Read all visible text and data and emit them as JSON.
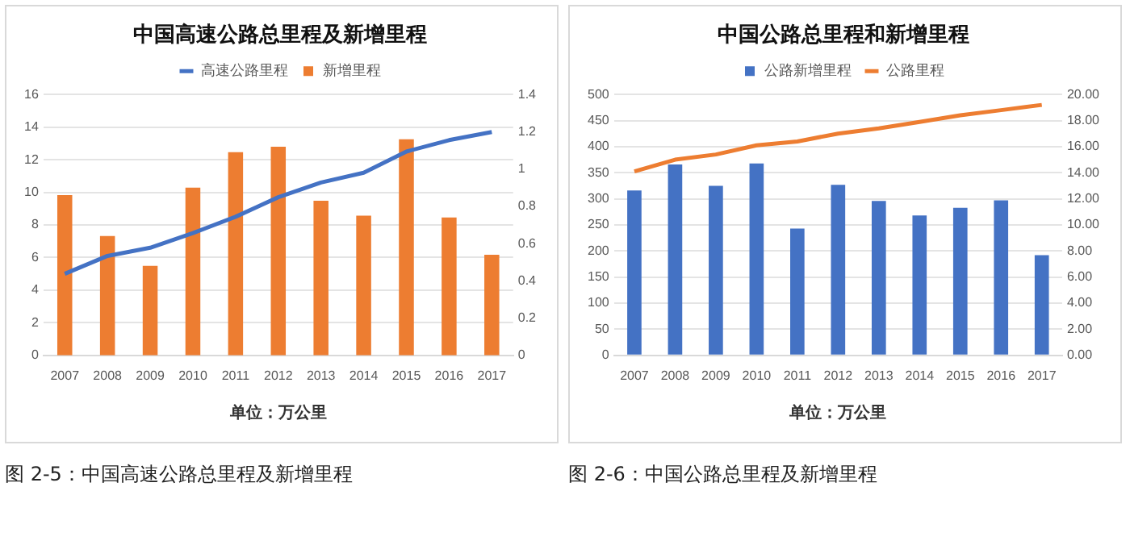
{
  "chart_data": [
    {
      "type": "bar",
      "title": "中国高速公路总里程及新增里程",
      "xlabel": "单位：万公里",
      "categories": [
        "2007",
        "2008",
        "2009",
        "2010",
        "2011",
        "2012",
        "2013",
        "2014",
        "2015",
        "2016",
        "2017"
      ],
      "series": [
        {
          "name": "高速公路里程",
          "type": "line",
          "axis": "y",
          "color": "#4472c4",
          "values": [
            5.0,
            6.1,
            6.6,
            7.5,
            8.5,
            9.7,
            10.6,
            11.2,
            12.5,
            13.2,
            13.7
          ]
        },
        {
          "name": "新增里程",
          "axis": "y2",
          "color": "#ed7d31",
          "values": [
            0.86,
            0.64,
            0.48,
            0.9,
            1.09,
            1.12,
            0.83,
            0.75,
            1.16,
            0.74,
            0.54
          ]
        }
      ],
      "ylim": [
        0,
        16
      ],
      "yticks": [
        0,
        2,
        4,
        6,
        8,
        10,
        12,
        14,
        16
      ],
      "y2lim": [
        0,
        1.4
      ],
      "y2ticks": [
        0,
        0.2,
        0.4,
        0.6,
        0.8,
        1,
        1.2,
        1.4
      ],
      "grid": "y",
      "legend": "top",
      "marker": "none",
      "annotations": [
        "图 2-5：中国高速公路总里程及新增里程"
      ]
    },
    {
      "type": "bar",
      "title": "中国公路总里程和新增里程",
      "xlabel": "单位：万公里",
      "categories": [
        "2007",
        "2008",
        "2009",
        "2010",
        "2011",
        "2012",
        "2013",
        "2014",
        "2015",
        "2016",
        "2017"
      ],
      "series": [
        {
          "name": "公路新增里程",
          "axis": "y",
          "color": "#4472c4",
          "values": [
            316,
            366,
            325,
            368,
            243,
            327,
            296,
            268,
            283,
            297,
            192
          ]
        },
        {
          "name": "公路里程",
          "type": "line",
          "axis": "y2",
          "color": "#ed7d31",
          "values": [
            14.1,
            15.0,
            15.4,
            16.1,
            16.4,
            17.0,
            17.4,
            17.9,
            18.4,
            18.8,
            19.2
          ]
        }
      ],
      "ylim": [
        0,
        500
      ],
      "yticks": [
        0,
        50,
        100,
        150,
        200,
        250,
        300,
        350,
        400,
        450,
        500
      ],
      "y2lim": [
        0,
        20
      ],
      "y2ticks": [
        {
          "value": 0,
          "label": "0.00"
        },
        {
          "value": 2,
          "label": "2.00"
        },
        {
          "value": 4,
          "label": "4.00"
        },
        {
          "value": 6,
          "label": "6.00"
        },
        {
          "value": 8,
          "label": "8.00"
        },
        {
          "value": 10,
          "label": "10.00"
        },
        {
          "value": 12,
          "label": "12.00"
        },
        {
          "value": 14,
          "label": "14.00"
        },
        {
          "value": 16,
          "label": "16.00"
        },
        {
          "value": 18,
          "label": "18.00"
        },
        {
          "value": 20,
          "label": "20.00"
        }
      ],
      "grid": "y",
      "legend": "top",
      "marker": "none",
      "annotations": [
        "图 2-6：中国公路总里程及新增里程"
      ]
    }
  ]
}
